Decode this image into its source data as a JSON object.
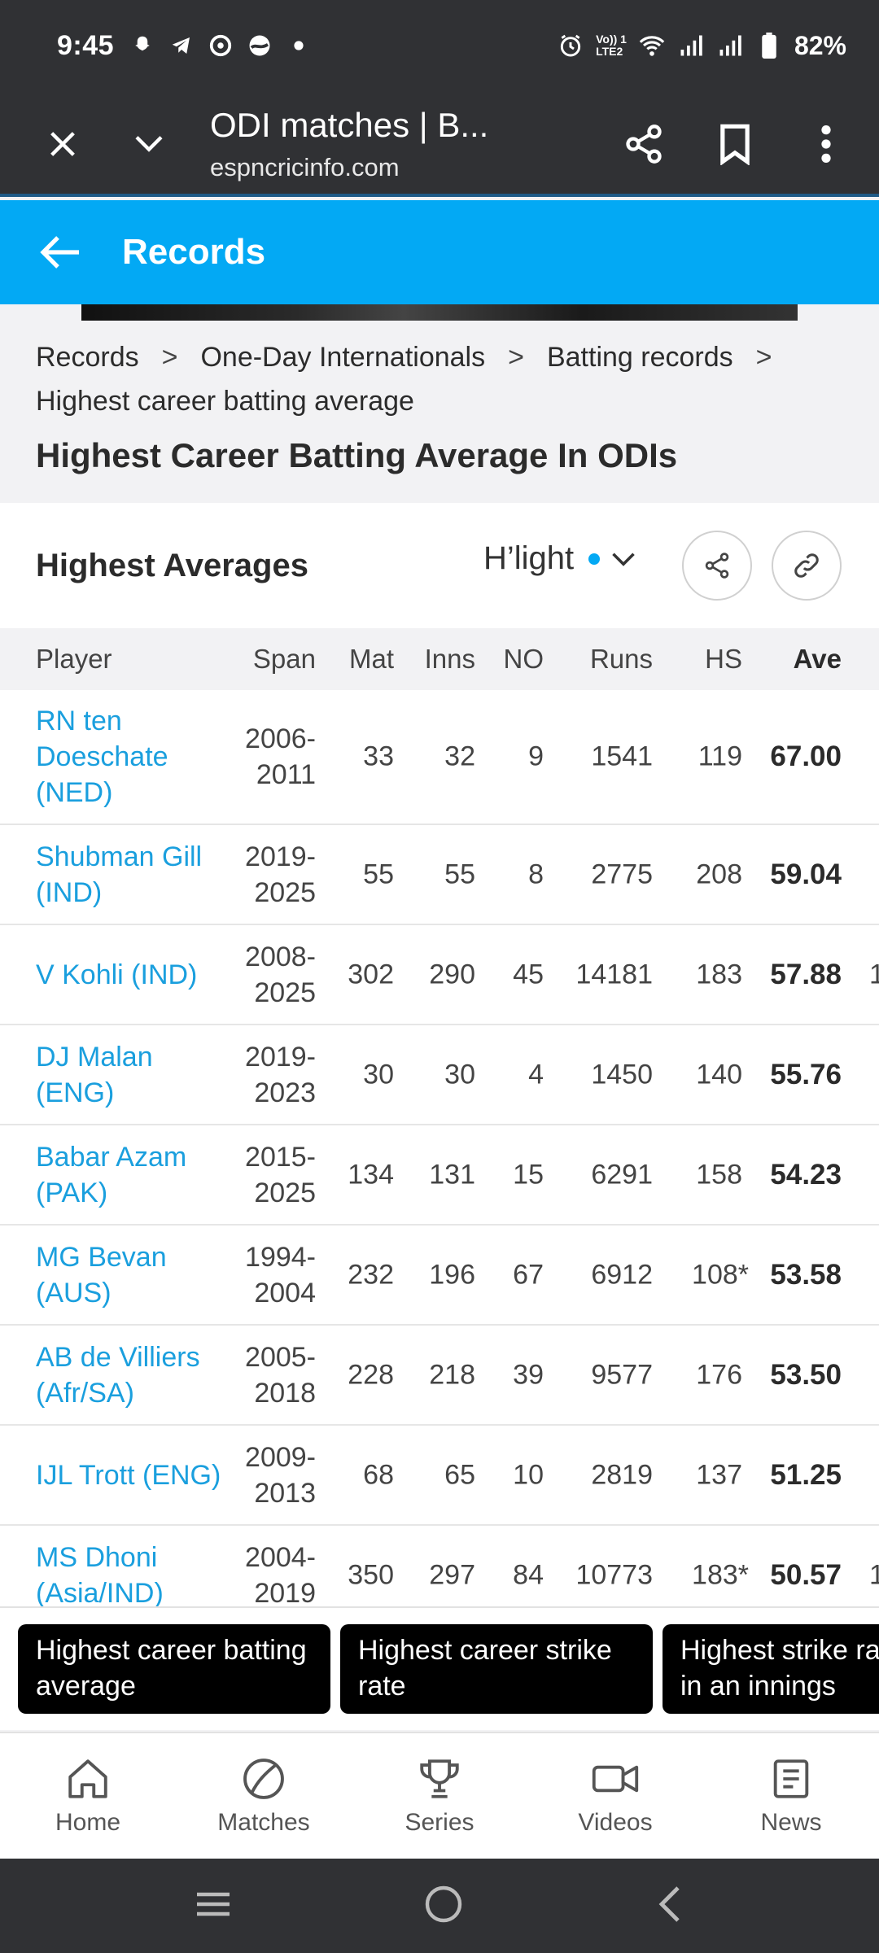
{
  "status_bar": {
    "time": "9:45",
    "battery": "82%",
    "network_label_top": "Vo)) 1",
    "network_label_bottom": "LTE2",
    "icons": [
      "snapchat-icon",
      "telegram-icon",
      "chrome-icon",
      "app-icon",
      "dot-icon",
      "alarm-icon",
      "wifi-icon",
      "signal-icon",
      "signal-icon",
      "battery-icon"
    ]
  },
  "browser": {
    "title": "ODI matches | B...",
    "url": "espncricinfo.com"
  },
  "header": {
    "title": "Records"
  },
  "breadcrumbs": [
    "Records",
    "One-Day Internationals",
    "Batting records",
    "Highest career batting average"
  ],
  "page_title": "Highest Career Batting Average In ODIs",
  "card": {
    "title": "Highest Averages",
    "filter_label": "H’light"
  },
  "table": {
    "columns": [
      "Player",
      "Span",
      "Mat",
      "Inns",
      "NO",
      "Runs",
      "HS",
      "Ave"
    ],
    "rows": [
      {
        "player": "RN ten Doeschate (NED)",
        "span": "2006-2011",
        "mat": "33",
        "inns": "32",
        "no": "9",
        "runs": "1541",
        "hs": "119",
        "ave": "67.00",
        "extra": ""
      },
      {
        "player": "Shubman Gill (IND)",
        "span": "2019-2025",
        "mat": "55",
        "inns": "55",
        "no": "8",
        "runs": "2775",
        "hs": "208",
        "ave": "59.04",
        "extra": ""
      },
      {
        "player": "V Kohli (IND)",
        "span": "2008-2025",
        "mat": "302",
        "inns": "290",
        "no": "45",
        "runs": "14181",
        "hs": "183",
        "ave": "57.88",
        "extra": "1"
      },
      {
        "player": "DJ Malan (ENG)",
        "span": "2019-2023",
        "mat": "30",
        "inns": "30",
        "no": "4",
        "runs": "1450",
        "hs": "140",
        "ave": "55.76",
        "extra": ""
      },
      {
        "player": "Babar Azam (PAK)",
        "span": "2015-2025",
        "mat": "134",
        "inns": "131",
        "no": "15",
        "runs": "6291",
        "hs": "158",
        "ave": "54.23",
        "extra": ""
      },
      {
        "player": "MG Bevan (AUS)",
        "span": "1994-2004",
        "mat": "232",
        "inns": "196",
        "no": "67",
        "runs": "6912",
        "hs": "108*",
        "ave": "53.58",
        "extra": ""
      },
      {
        "player": "AB de Villiers (Afr/SA)",
        "span": "2005-2018",
        "mat": "228",
        "inns": "218",
        "no": "39",
        "runs": "9577",
        "hs": "176",
        "ave": "53.50",
        "extra": ""
      },
      {
        "player": "IJL Trott (ENG)",
        "span": "2009-2013",
        "mat": "68",
        "inns": "65",
        "no": "10",
        "runs": "2819",
        "hs": "137",
        "ave": "51.25",
        "extra": ""
      },
      {
        "player": "MS Dhoni (Asia/IND)",
        "span": "2004-2019",
        "mat": "350",
        "inns": "297",
        "no": "84",
        "runs": "10773",
        "hs": "183*",
        "ave": "50.57",
        "extra": "1"
      }
    ]
  },
  "related": [
    "Highest career batting average",
    "Highest career strike rate",
    "Highest strike rate in an innings"
  ],
  "bottom_nav": [
    {
      "label": "Home",
      "icon": "home-icon"
    },
    {
      "label": "Matches",
      "icon": "ball-icon"
    },
    {
      "label": "Series",
      "icon": "trophy-icon"
    },
    {
      "label": "Videos",
      "icon": "video-icon"
    },
    {
      "label": "News",
      "icon": "news-icon"
    }
  ],
  "colors": {
    "accent": "#03a9f4",
    "link": "#1a9fde",
    "dark_bar": "#303134"
  }
}
